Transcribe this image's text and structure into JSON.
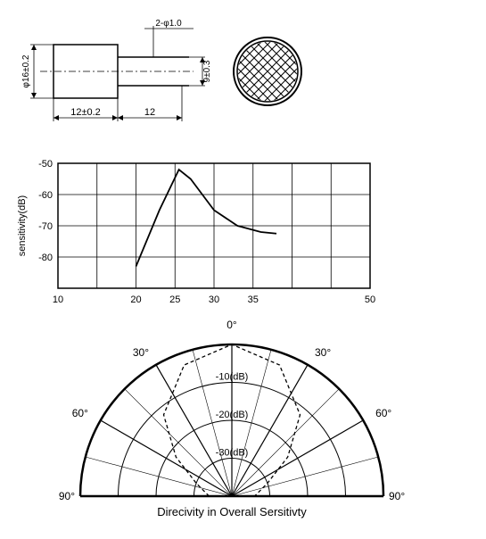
{
  "technical_drawing": {
    "body_width_label": "12±0.2",
    "pin_spacing_label": "12",
    "diameter_label": "φ16±0.2",
    "pin_protrusion_label": "2-φ1.0",
    "body_height_label": "9±0.3",
    "stroke_color": "#000000",
    "grid_pattern_color": "#000000"
  },
  "sensitivity_chart": {
    "type": "line",
    "title": "",
    "ylabel": "sensitivity(dB)",
    "xlim": [
      10,
      50
    ],
    "ylim": [
      -90,
      -50
    ],
    "xtick_step": 5,
    "ytick_step": 10,
    "xticks": [
      10,
      20,
      25,
      30,
      35,
      50
    ],
    "yticks": [
      -50,
      -60,
      -70,
      -80
    ],
    "data_points": [
      {
        "x": 20,
        "y": -83
      },
      {
        "x": 23,
        "y": -65
      },
      {
        "x": 25.5,
        "y": -52
      },
      {
        "x": 27,
        "y": -55
      },
      {
        "x": 30,
        "y": -65
      },
      {
        "x": 33,
        "y": -70
      },
      {
        "x": 36,
        "y": -72
      },
      {
        "x": 38,
        "y": -72.5
      }
    ],
    "grid_color": "#000000",
    "line_color": "#000000",
    "background_color": "#ffffff",
    "label_fontsize": 11,
    "tick_fontsize": 11
  },
  "directivity_chart": {
    "type": "polar",
    "title": "Direcivity in Overall Sersitivty",
    "angle_labels": [
      "90°",
      "60°",
      "30°",
      "0°",
      "30°",
      "60°",
      "90°"
    ],
    "angles_deg": [
      -90,
      -60,
      -30,
      0,
      30,
      60,
      90
    ],
    "ring_labels": [
      "-10(dB)",
      "-20(dB)",
      "-30(dB)"
    ],
    "ring_count": 4,
    "lobe_pattern": [
      {
        "angle": -90,
        "r": 0.15
      },
      {
        "angle": -70,
        "r": 0.25
      },
      {
        "angle": -55,
        "r": 0.45
      },
      {
        "angle": -40,
        "r": 0.7
      },
      {
        "angle": -20,
        "r": 0.92
      },
      {
        "angle": 0,
        "r": 1.0
      },
      {
        "angle": 20,
        "r": 0.92
      },
      {
        "angle": 40,
        "r": 0.7
      },
      {
        "angle": 55,
        "r": 0.45
      },
      {
        "angle": 70,
        "r": 0.25
      },
      {
        "angle": 90,
        "r": 0.15
      }
    ],
    "stroke_color": "#000000",
    "title_fontsize": 13
  }
}
